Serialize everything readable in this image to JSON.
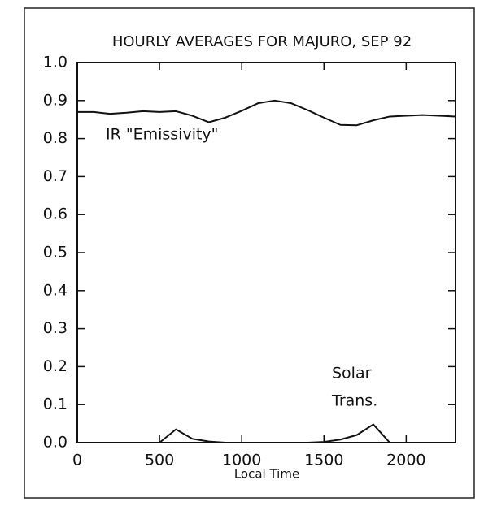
{
  "chart_data": {
    "type": "line",
    "title": "HOURLY AVERAGES FOR MAJURO, SEP 92",
    "x_label": "Local Time",
    "annotations": [
      "IR \"Emissivity\"",
      "Solar",
      "Trans."
    ],
    "x": [
      0,
      100,
      200,
      300,
      400,
      500,
      600,
      700,
      800,
      900,
      1000,
      1100,
      1200,
      1300,
      1400,
      1500,
      1600,
      1700,
      1800,
      1900,
      2000,
      2100,
      2200,
      2300
    ],
    "series": [
      {
        "name": "IR \"Emissivity\"",
        "color": "#111111",
        "values": [
          0.87,
          0.87,
          0.865,
          0.868,
          0.872,
          0.87,
          0.872,
          0.86,
          0.843,
          0.855,
          0.873,
          0.893,
          0.9,
          0.893,
          0.875,
          0.855,
          0.836,
          0.835,
          0.848,
          0.858,
          0.86,
          0.862,
          0.86,
          0.858
        ]
      },
      {
        "name": "Solar Trans.",
        "color": "#111111",
        "values": [
          null,
          null,
          null,
          null,
          null,
          0.0,
          0.035,
          0.01,
          0.003,
          0.0,
          0.0,
          0.0,
          0.0,
          0.0,
          0.0,
          0.002,
          0.008,
          0.02,
          0.048,
          0.0,
          null,
          null,
          null,
          null
        ]
      }
    ],
    "xlim": [
      0,
      2300
    ],
    "xticks": [
      0,
      500,
      1000,
      1500,
      2000
    ],
    "ylim": [
      0,
      1
    ],
    "yticks": [
      {
        "value": 0,
        "label": "0.0"
      },
      0.1,
      0.2,
      0.3,
      0.4,
      0.5,
      0.6,
      0.7,
      0.8,
      0.9,
      {
        "value": 1,
        "label": "1.0"
      }
    ],
    "legend": false,
    "grid": false
  }
}
